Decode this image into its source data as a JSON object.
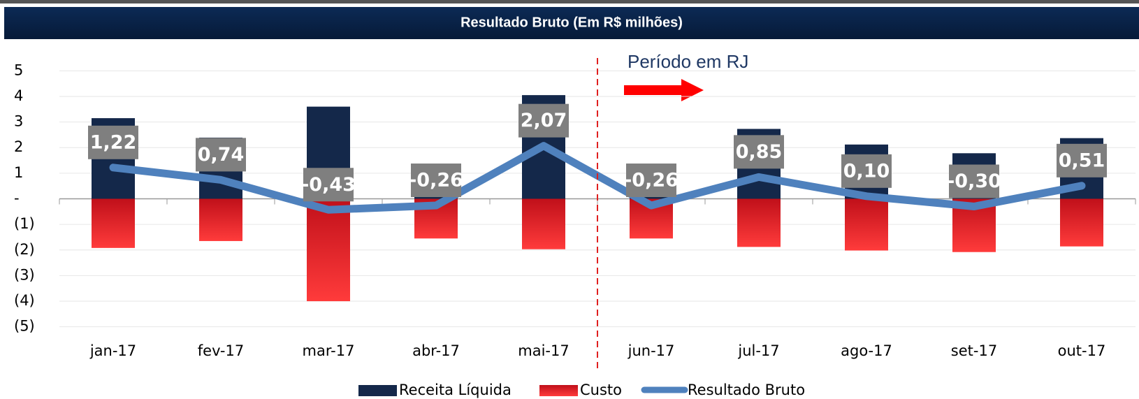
{
  "chart_data": {
    "type": "bar",
    "title": "Resultado Bruto (Em R$ milhões)",
    "annotation": "Período em RJ",
    "categories": [
      "jan-17",
      "fev-17",
      "mar-17",
      "abr-17",
      "mai-17",
      "jun-17",
      "jul-17",
      "ago-17",
      "set-17",
      "out-17"
    ],
    "series": [
      {
        "name": "Receita Líquida",
        "color": "#14284a",
        "values": [
          3.15,
          2.39,
          3.6,
          1.29,
          4.05,
          1.29,
          2.73,
          2.12,
          1.78,
          2.37
        ]
      },
      {
        "name": "Custo",
        "color": "#e8262a",
        "values": [
          -1.92,
          -1.65,
          -4.0,
          -1.55,
          -1.97,
          -1.55,
          -1.88,
          -2.02,
          -2.08,
          -1.86
        ]
      },
      {
        "name": "Resultado Bruto",
        "color": "#4f81bd",
        "type": "line",
        "values": [
          1.22,
          0.74,
          -0.43,
          -0.26,
          2.07,
          -0.26,
          0.85,
          0.1,
          -0.3,
          0.51
        ],
        "value_labels": [
          "1,22",
          "0,74",
          "-0,43",
          "-0,26",
          "2,07",
          "-0,26",
          "0,85",
          "0,10",
          "-0,30",
          "0,51"
        ]
      }
    ],
    "ylim": [
      -5.5,
      5.5
    ],
    "yticks": [
      {
        "value": 5,
        "label": "5"
      },
      {
        "value": 4,
        "label": "4"
      },
      {
        "value": 3,
        "label": "3"
      },
      {
        "value": 2,
        "label": "2"
      },
      {
        "value": 1,
        "label": "1"
      },
      {
        "value": 0,
        "label": "-"
      },
      {
        "value": -1,
        "label": "(1)"
      },
      {
        "value": -2,
        "label": "(2)"
      },
      {
        "value": -3,
        "label": "(3)"
      },
      {
        "value": -4,
        "label": "(4)"
      },
      {
        "value": -5,
        "label": "(5)"
      }
    ],
    "grid": true
  }
}
